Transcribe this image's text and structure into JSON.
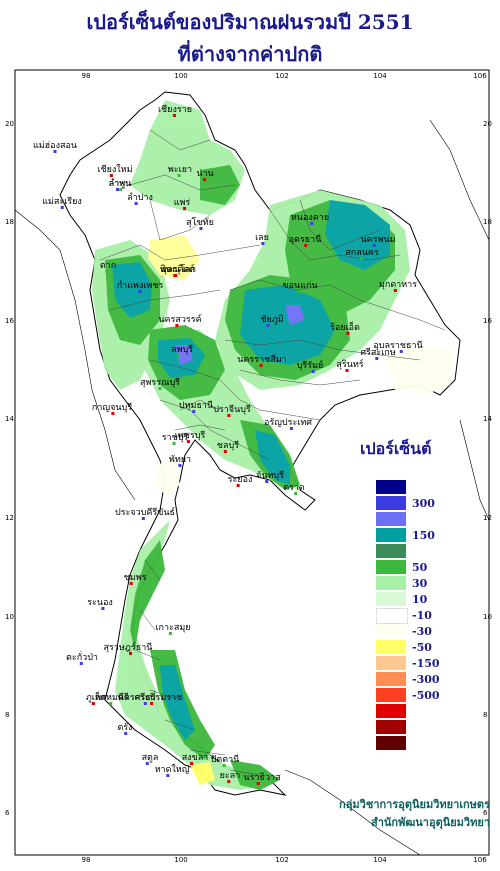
{
  "title_line1": "เปอร์เซ็นต์ของปริมาณฝนรวมปี  2551",
  "title_line2": "ที่ต่างจากค่าปกติ",
  "axis_ticks": {
    "longitude": [
      "98",
      "100",
      "102",
      "104",
      "106"
    ],
    "latitude": [
      "20",
      "18",
      "16",
      "14",
      "12",
      "10",
      "8",
      "6"
    ]
  },
  "legend": {
    "title": "เปอร์เซ็นต์",
    "colors": [
      "#00008b",
      "#3b3be0",
      "#6e6ef5",
      "#00a0a0",
      "#3a8a5a",
      "#3cb83c",
      "#a8f0a8",
      "#d8f8d8",
      "#ffffff",
      "#fffff0",
      "#ffff66",
      "#ffc890",
      "#ff8c50",
      "#ff4020",
      "#e00000",
      "#a00000",
      "#600000"
    ],
    "labels": [
      "300",
      "150",
      "50",
      "30",
      "10",
      "-10",
      "-30",
      "-50",
      "-150",
      "-300",
      "-500"
    ]
  },
  "credit": {
    "line1": "กลุ่มวิชาการอุตุนิยมวิทยาเกษตร",
    "line2": "สำนักพัฒนาอุตุนิยมวิทยา"
  },
  "cities": [
    {
      "name": "เชียงราย"
    },
    {
      "name": "แม่ฮ่องสอน"
    },
    {
      "name": "เชียงใหม่"
    },
    {
      "name": "ลำพูน"
    },
    {
      "name": "พะเยา"
    },
    {
      "name": "น่าน"
    },
    {
      "name": "ลำปาง"
    },
    {
      "name": "แพร่"
    },
    {
      "name": "แม่สะเรียง"
    },
    {
      "name": "ตาก"
    },
    {
      "name": "อุตรดิตถ์"
    },
    {
      "name": "หนองคาย"
    },
    {
      "name": "อุดรธานี"
    },
    {
      "name": "นครพนม"
    },
    {
      "name": "สกลนคร"
    },
    {
      "name": "มุกดาหาร"
    },
    {
      "name": "เลย"
    },
    {
      "name": "พิษณุโลก"
    },
    {
      "name": "กำแพงเพชร"
    },
    {
      "name": "ขอนแก่น"
    },
    {
      "name": "นครสวรรค์"
    },
    {
      "name": "ชัยภูมิ"
    },
    {
      "name": "ร้อยเอ็ด"
    },
    {
      "name": "อุบลราชธานี"
    },
    {
      "name": "ลพบุรี"
    },
    {
      "name": "นครราชสีมา"
    },
    {
      "name": "บุรีรัมย์"
    },
    {
      "name": "สุรินทร์"
    },
    {
      "name": "ศรีสะเกษ"
    },
    {
      "name": "สุพรรณบุรี"
    },
    {
      "name": "กาญจนบุรี"
    },
    {
      "name": "ปทุมธานี"
    },
    {
      "name": "ปราจีนบุรี"
    },
    {
      "name": "อรัญประเทศ"
    },
    {
      "name": "ราชบุรี"
    },
    {
      "name": "ชลบุรี"
    },
    {
      "name": "พัทยา"
    },
    {
      "name": "ระยอง"
    },
    {
      "name": "จันทบุรี"
    },
    {
      "name": "ตราด"
    },
    {
      "name": "เพชรบุรี"
    },
    {
      "name": "ประจวบคีรีขันธ์"
    },
    {
      "name": "ชุมพร"
    },
    {
      "name": "ระนอง"
    },
    {
      "name": "เกาะสมุย"
    },
    {
      "name": "สุราษฎร์ธานี"
    },
    {
      "name": "ตะกั่วป่า"
    },
    {
      "name": "ภูเก็ต"
    },
    {
      "name": "กระบี่"
    },
    {
      "name": "พรหมคีรี"
    },
    {
      "name": "นครศรีธรรมราช"
    },
    {
      "name": "ตรัง"
    },
    {
      "name": "สงขลา"
    },
    {
      "name": "สตูล"
    },
    {
      "name": "ปัตตานี"
    },
    {
      "name": "นราธิวาส"
    },
    {
      "name": "หาดใหญ่"
    },
    {
      "name": "ยะลา"
    },
    {
      "name": "สุโขทัย"
    },
    {
      "name": "ลำพูน"
    }
  ]
}
